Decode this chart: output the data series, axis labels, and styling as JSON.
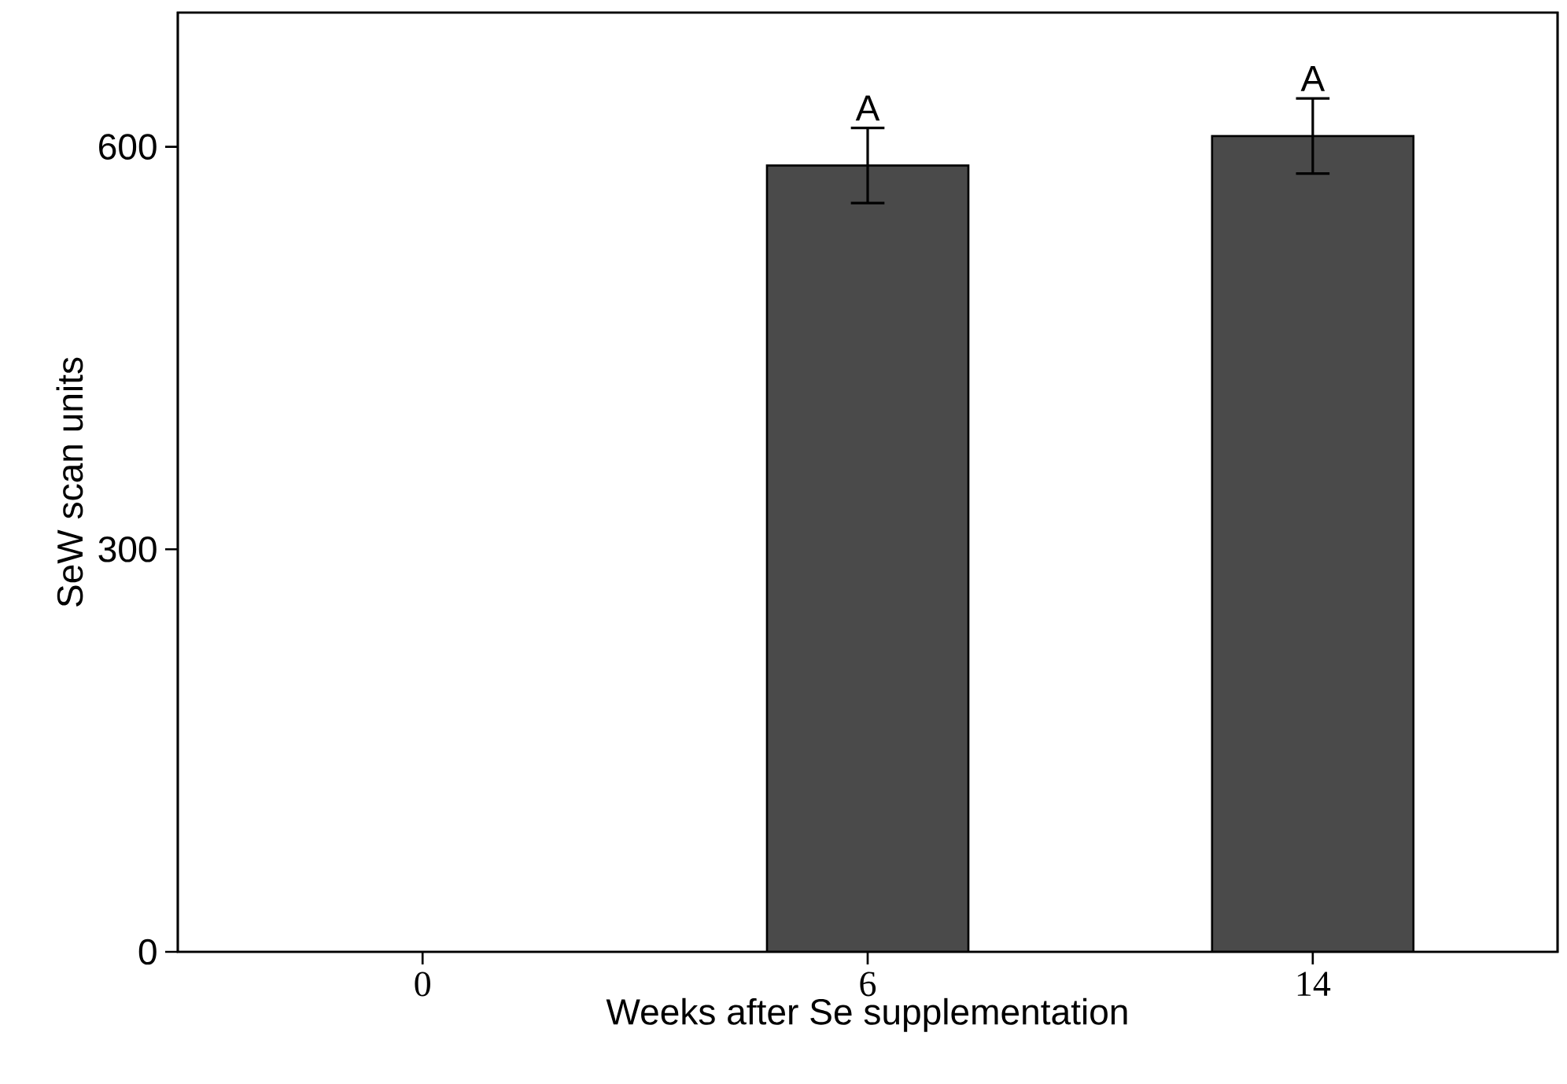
{
  "chart_data": {
    "type": "bar",
    "xlabel": "Weeks after Se supplementation",
    "ylabel": "SeW scan units",
    "categories": [
      "0",
      "6",
      "14"
    ],
    "values": [
      null,
      586,
      608
    ],
    "errors": [
      null,
      28,
      28
    ],
    "color": "#4a4a4a",
    "ylim": [
      0,
      700
    ],
    "yticks": [
      0,
      300,
      600
    ],
    "annotations": [
      {
        "text": "A",
        "x": "6",
        "y": 614
      },
      {
        "text": "A",
        "x": "14",
        "y": 636
      }
    ]
  }
}
